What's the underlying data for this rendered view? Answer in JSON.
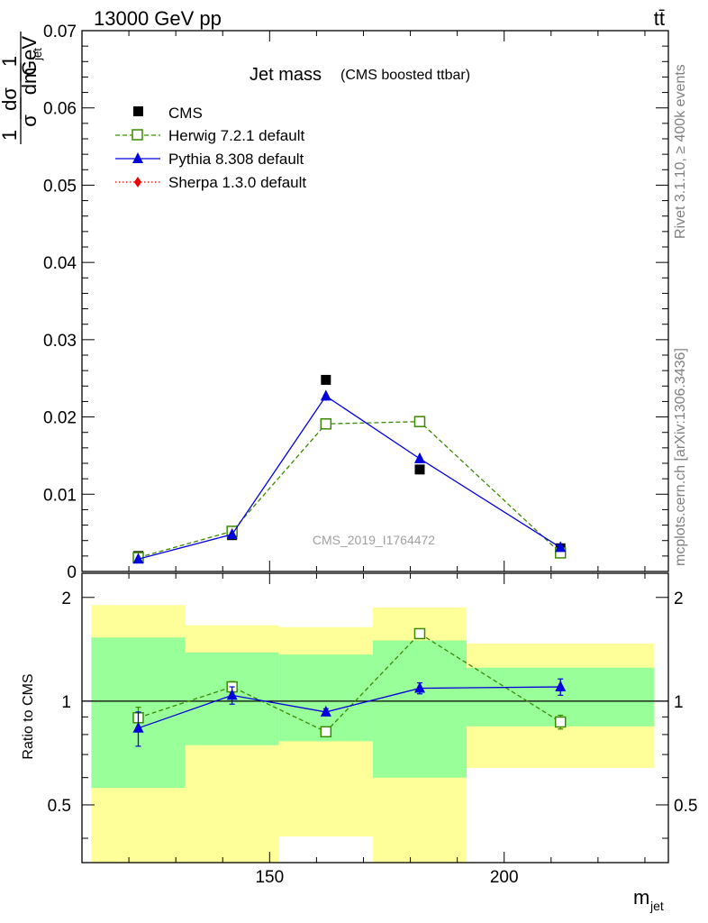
{
  "header": {
    "energy_label": "13000 GeV pp",
    "process_label": "tt̄"
  },
  "side_labels": {
    "rivet": "Rivet 3.1.10, ≥ 400k events",
    "mcplots": "mcplots.cern.ch [arXiv:1306.3436]"
  },
  "watermark": "CMS_2019_I1764472",
  "ylabel_main": {
    "one": "1",
    "sigma": "σ",
    "dsigma": "dσ",
    "dm": "dm",
    "jet_sub": "jet",
    "gev": "GeV"
  },
  "xlabel": {
    "main": "m",
    "sub": "jet"
  },
  "ylabel_ratio": "Ratio to CMS",
  "colors": {
    "cms": "#000000",
    "herwig": "#3a8a00",
    "pythia": "#0000dd",
    "sherpa": "#ee0000",
    "band_inner": "#99ff99",
    "band_outer": "#ffff99"
  },
  "chart_data": [
    {
      "type": "line",
      "title": "Jet mass",
      "subtitle": "(CMS boosted ttbar)",
      "xlabel": "m_jet",
      "ylabel": "1/σ dσ/dm_jet 1/GeV",
      "xlim": [
        110,
        235
      ],
      "ylim": [
        0,
        0.07
      ],
      "yticks": [
        0,
        0.01,
        0.02,
        0.03,
        0.04,
        0.05,
        0.06,
        0.07
      ],
      "ytick_labels": [
        "0",
        "0.01",
        "0.02",
        "0.03",
        "0.04",
        "0.05",
        "0.06",
        "0.07"
      ],
      "legend_position": "top-left",
      "series": [
        {
          "name": "CMS",
          "marker": "square-filled",
          "x": [
            122,
            142,
            162,
            182,
            212
          ],
          "y": [
            0.002,
            0.0047,
            0.0248,
            0.0132,
            0.003
          ]
        },
        {
          "name": "Herwig 7.2.1 default",
          "marker": "square-open",
          "line": "dashed",
          "x": [
            122,
            142,
            162,
            182,
            212
          ],
          "y": [
            0.0018,
            0.0052,
            0.0191,
            0.0194,
            0.0024
          ],
          "err": [
            0.0002,
            0.0003,
            0.0004,
            0.0004,
            0.0002
          ]
        },
        {
          "name": "Pythia 8.308 default",
          "marker": "triangle-filled",
          "line": "solid",
          "x": [
            122,
            142,
            162,
            182,
            212
          ],
          "y": [
            0.0016,
            0.0048,
            0.0227,
            0.0146,
            0.0031
          ],
          "err": [
            0.0002,
            0.0002,
            0.0006,
            0.0006,
            0.0003
          ]
        },
        {
          "name": "Sherpa 1.3.0 default",
          "marker": "diamond-filled",
          "line": "dotted",
          "x": [],
          "y": []
        }
      ]
    },
    {
      "type": "line",
      "title": "",
      "xlabel": "m_jet",
      "ylabel": "Ratio to CMS",
      "xlim": [
        110,
        235
      ],
      "ylim": [
        0.34,
        2.35
      ],
      "yscale": "log",
      "xticks": [
        150,
        200
      ],
      "xtick_labels": [
        "150",
        "200"
      ],
      "yticks": [
        0.5,
        1,
        2
      ],
      "ytick_labels": [
        "0.5",
        "1",
        "2"
      ],
      "bins": [
        [
          112,
          132
        ],
        [
          132,
          152
        ],
        [
          152,
          172
        ],
        [
          172,
          192
        ],
        [
          192,
          232
        ]
      ],
      "band_inner": {
        "low": [
          0.56,
          0.745,
          0.765,
          0.6,
          0.845
        ],
        "high": [
          1.53,
          1.385,
          1.365,
          1.5,
          1.25
        ]
      },
      "band_outer": {
        "low": [
          0.3,
          0.3,
          0.405,
          0.3,
          0.64
        ],
        "high": [
          1.9,
          1.66,
          1.64,
          1.87,
          1.47
        ]
      },
      "series": [
        {
          "name": "Herwig 7.2.1 default",
          "x": [
            122,
            142,
            162,
            182,
            212
          ],
          "y": [
            0.895,
            1.1,
            0.815,
            1.57,
            0.87
          ],
          "err": [
            0.065,
            0.04,
            0.02,
            0.03,
            0.04
          ]
        },
        {
          "name": "Pythia 8.308 default",
          "x": [
            122,
            142,
            162,
            182,
            212
          ],
          "y": [
            0.835,
            1.04,
            0.93,
            1.09,
            1.1
          ],
          "err": [
            0.095,
            0.06,
            0.02,
            0.04,
            0.06
          ]
        }
      ]
    }
  ]
}
